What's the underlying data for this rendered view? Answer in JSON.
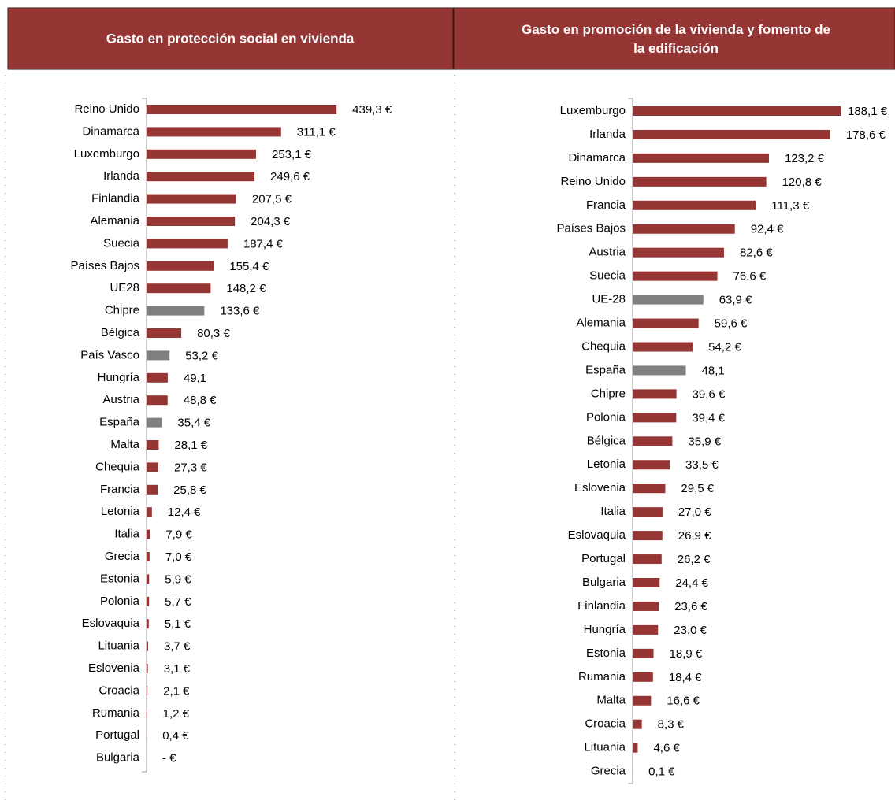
{
  "chart_data": [
    {
      "type": "bar",
      "orientation": "horizontal",
      "title": "Gasto en protección social en vivienda",
      "categories": [
        "Reino Unido",
        "Dinamarca",
        "Luxemburgo",
        "Irlanda",
        "Finlandia",
        "Alemania",
        "Suecia",
        "Países Bajos",
        "UE28",
        "Chipre",
        "Bélgica",
        "País Vasco",
        "Hungría",
        "Austria",
        "España",
        "Malta",
        "Chequia",
        "Francia",
        "Letonia",
        "Italia",
        "Grecia",
        "Estonia",
        "Polonia",
        "Eslovaquia",
        "Lituania",
        "Eslovenia",
        "Croacia",
        "Rumania",
        "Portugal",
        "Bulgaria"
      ],
      "values": [
        439.3,
        311.1,
        253.1,
        249.6,
        207.5,
        204.3,
        187.4,
        155.4,
        148.2,
        133.6,
        80.3,
        53.2,
        49.1,
        48.8,
        35.4,
        28.1,
        27.3,
        25.8,
        12.4,
        7.9,
        7.0,
        5.9,
        5.7,
        5.1,
        3.7,
        3.1,
        2.1,
        1.2,
        0.4,
        0
      ],
      "value_labels": [
        "439,3 €",
        "311,1 €",
        "253,1 €",
        "249,6 €",
        "207,5 €",
        "204,3 €",
        "187,4 €",
        "155,4 €",
        "148,2 €",
        "133,6 €",
        "80,3 €",
        "53,2 €",
        "49,1",
        "48,8 €",
        "35,4 €",
        "28,1 €",
        "27,3 €",
        "25,8 €",
        "12,4 €",
        "7,9 €",
        "7,0 €",
        "5,9 €",
        "5,7 €",
        "5,1 €",
        "3,7 €",
        "3,1 €",
        "2,1 €",
        "1,2 €",
        "0,4 €",
        "-  €"
      ],
      "colors": [
        "#963634",
        "#963634",
        "#963634",
        "#963634",
        "#963634",
        "#963634",
        "#963634",
        "#963634",
        "#963634",
        "#808080",
        "#963634",
        "#808080",
        "#963634",
        "#963634",
        "#808080",
        "#963634",
        "#963634",
        "#963634",
        "#963634",
        "#963634",
        "#963634",
        "#963634",
        "#963634",
        "#963634",
        "#963634",
        "#963634",
        "#963634",
        "#963634",
        "#963634",
        "#963634"
      ]
    },
    {
      "type": "bar",
      "orientation": "horizontal",
      "title": "Gasto en promoción de la vivienda y fomento de la edificación",
      "categories": [
        "Luxemburgo",
        "Irlanda",
        "Dinamarca",
        "Reino Unido",
        "Francia",
        "Países Bajos",
        "Austria",
        "Suecia",
        "UE-28",
        "Alemania",
        "Chequia",
        "España",
        "Chipre",
        "Polonia",
        "Bélgica",
        "Letonia",
        "Eslovenia",
        "Italia",
        "Eslovaquia",
        "Portugal",
        "Bulgaria",
        "Finlandia",
        "Hungría",
        "Estonia",
        "Rumania",
        "Malta",
        "Croacia",
        "Lituania",
        "Grecia"
      ],
      "values": [
        188.1,
        178.6,
        123.2,
        120.8,
        111.3,
        92.4,
        82.6,
        76.6,
        63.9,
        59.6,
        54.2,
        48.1,
        39.6,
        39.4,
        35.9,
        33.5,
        29.5,
        27.0,
        26.9,
        26.2,
        24.4,
        23.6,
        23.0,
        18.9,
        18.4,
        16.6,
        8.3,
        4.6,
        0.1
      ],
      "value_labels": [
        "188,1 €",
        "178,6 €",
        "123,2 €",
        "120,8 €",
        "111,3 €",
        "92,4 €",
        "82,6 €",
        "76,6 €",
        "63,9 €",
        "59,6 €",
        "54,2 €",
        "48,1",
        "39,6 €",
        "39,4 €",
        "35,9 €",
        "33,5 €",
        "29,5 €",
        "27,0 €",
        "26,9 €",
        "26,2 €",
        "24,4 €",
        "23,6 €",
        "23,0 €",
        "18,9 €",
        "18,4 €",
        "16,6 €",
        "8,3 €",
        "4,6 €",
        "0,1 €"
      ],
      "colors": [
        "#963634",
        "#963634",
        "#963634",
        "#963634",
        "#963634",
        "#963634",
        "#963634",
        "#963634",
        "#808080",
        "#963634",
        "#963634",
        "#808080",
        "#963634",
        "#963634",
        "#963634",
        "#963634",
        "#963634",
        "#963634",
        "#963634",
        "#963634",
        "#963634",
        "#963634",
        "#963634",
        "#963634",
        "#963634",
        "#963634",
        "#963634",
        "#963634",
        "#963634"
      ]
    }
  ]
}
